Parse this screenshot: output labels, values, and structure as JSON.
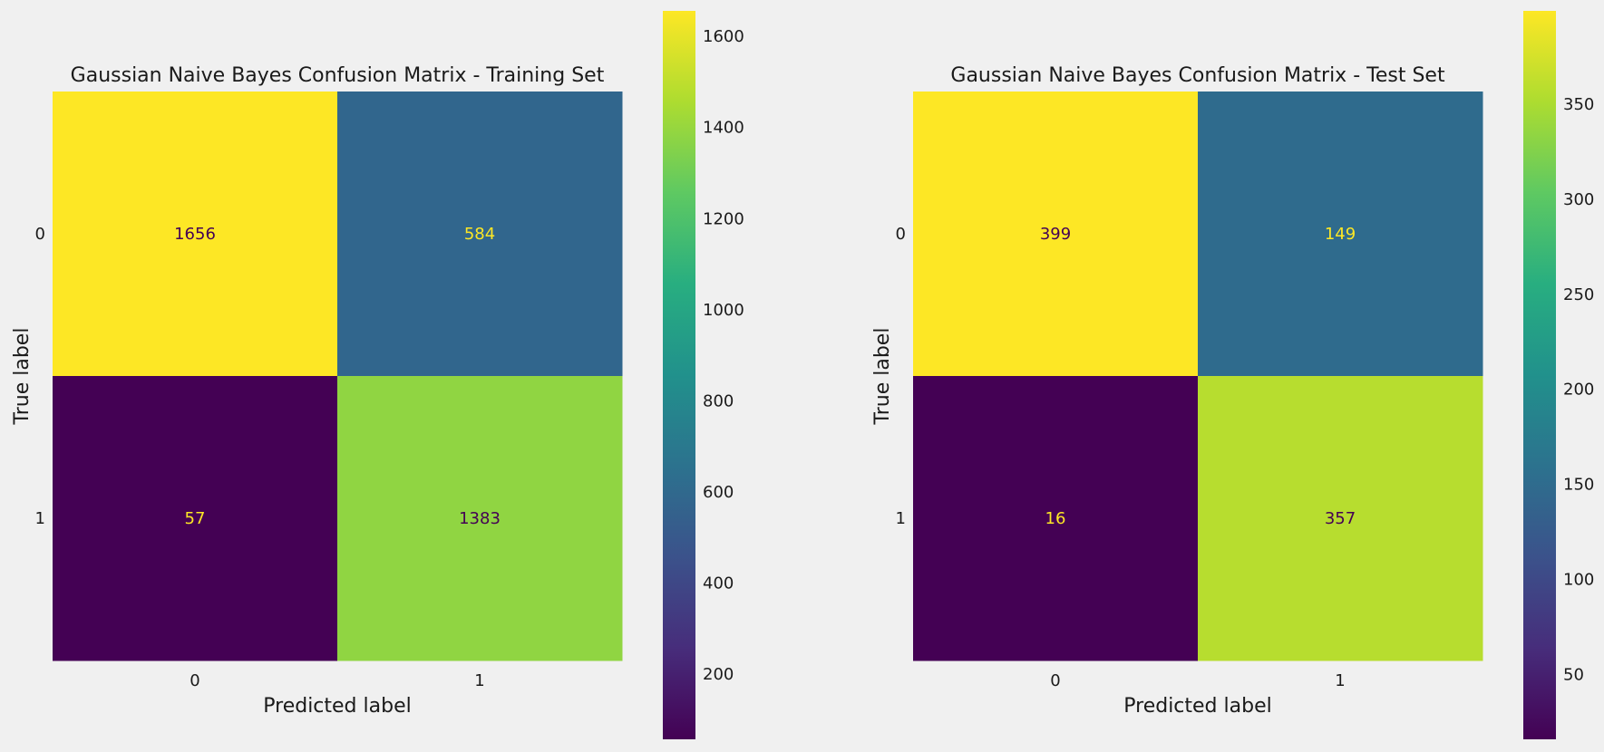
{
  "chart_data": [
    {
      "type": "heatmap",
      "title": "Gaussian Naive Bayes Confusion Matrix - Training Set",
      "xlabel": "Predicted label",
      "ylabel": "True label",
      "x_tick_labels": [
        "0",
        "1"
      ],
      "y_tick_labels": [
        "0",
        "1"
      ],
      "values": [
        [
          1656,
          584
        ],
        [
          57,
          1383
        ]
      ],
      "colormap": "viridis",
      "colorbar": {
        "ticks": [
          200,
          400,
          600,
          800,
          1000,
          1200,
          1400,
          1600
        ],
        "range": [
          57,
          1656
        ]
      },
      "grid": false
    },
    {
      "type": "heatmap",
      "title": "Gaussian Naive Bayes Confusion Matrix - Test Set",
      "xlabel": "Predicted label",
      "ylabel": "True label",
      "x_tick_labels": [
        "0",
        "1"
      ],
      "y_tick_labels": [
        "0",
        "1"
      ],
      "values": [
        [
          399,
          149
        ],
        [
          16,
          357
        ]
      ],
      "colormap": "viridis",
      "colorbar": {
        "ticks": [
          50,
          100,
          150,
          200,
          250,
          300,
          350
        ],
        "range": [
          16,
          399
        ]
      },
      "grid": false
    }
  ],
  "colors": {
    "background": "#f0f0f0",
    "text": "#1a1a1a",
    "label_on_dark": "#fde725",
    "label_on_light": "#440154"
  }
}
